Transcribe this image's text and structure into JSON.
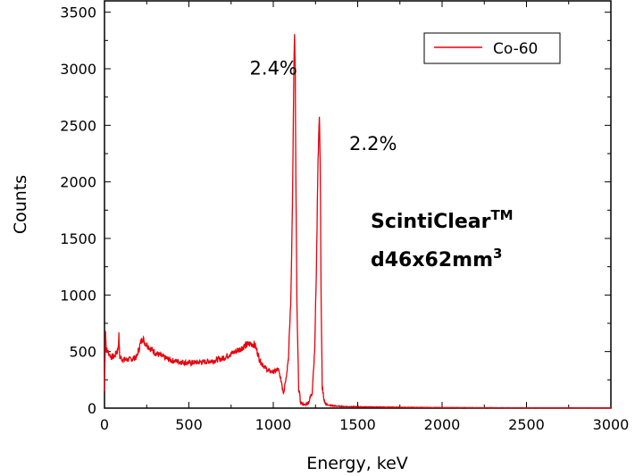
{
  "chart_data": {
    "type": "line",
    "xlabel": "Energy, keV",
    "ylabel": "Counts",
    "xlim": [
      0,
      3000
    ],
    "ylim": [
      0,
      3600
    ],
    "xticks": [
      0,
      500,
      1000,
      1500,
      2000,
      2500,
      3000
    ],
    "yticks": [
      0,
      500,
      1000,
      1500,
      2000,
      2500,
      3000,
      3500
    ],
    "grid": false,
    "legend_position": "top-right",
    "series": [
      {
        "name": "Co-60",
        "color": "#e8000b",
        "x": [
          0,
          6,
          10,
          20,
          40,
          60,
          80,
          85,
          90,
          110,
          150,
          190,
          215,
          225,
          240,
          270,
          300,
          350,
          400,
          450,
          500,
          550,
          600,
          650,
          700,
          750,
          800,
          840,
          870,
          890,
          905,
          920,
          945,
          970,
          1000,
          1030,
          1050,
          1060,
          1075,
          1090,
          1105,
          1115,
          1122,
          1126,
          1130,
          1134,
          1140,
          1150,
          1160,
          1170,
          1180,
          1190,
          1200,
          1215,
          1230,
          1245,
          1255,
          1265,
          1273,
          1278,
          1283,
          1290,
          1300,
          1315,
          1330,
          1360,
          1400,
          1500,
          1700,
          2000,
          2500,
          3000
        ],
        "y": [
          150,
          700,
          520,
          500,
          450,
          460,
          520,
          640,
          450,
          430,
          430,
          450,
          580,
          620,
          580,
          530,
          490,
          450,
          420,
          410,
          400,
          405,
          410,
          420,
          440,
          480,
          520,
          560,
          570,
          560,
          500,
          420,
          370,
          330,
          320,
          340,
          220,
          150,
          260,
          450,
          1000,
          2000,
          3000,
          3280,
          3000,
          2000,
          900,
          200,
          60,
          40,
          30,
          30,
          40,
          70,
          150,
          500,
          1200,
          2200,
          2580,
          2200,
          1000,
          200,
          60,
          35,
          25,
          20,
          15,
          12,
          8,
          5,
          3,
          2
        ]
      }
    ],
    "annotations": [
      {
        "text": "2.4%",
        "x": 860,
        "y": 2950
      },
      {
        "text": "2.2%",
        "x": 1450,
        "y": 2280
      }
    ],
    "label_block": {
      "line1": "ScintiClear",
      "line1_sup": "TM",
      "line2": "d46x62mm",
      "line2_sup": "3"
    }
  }
}
